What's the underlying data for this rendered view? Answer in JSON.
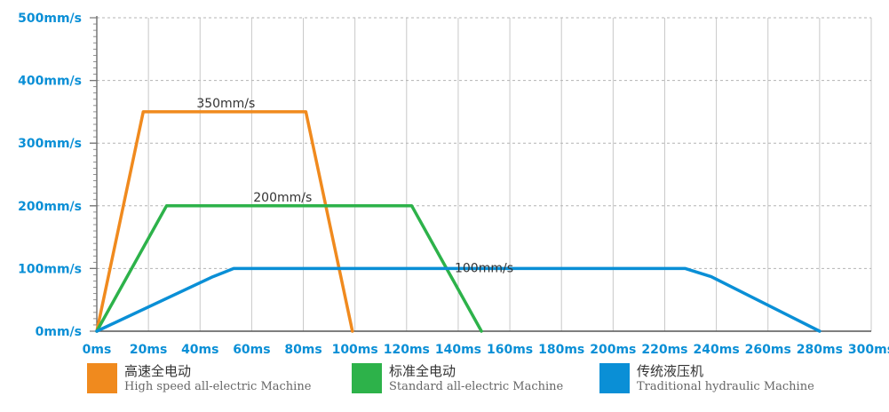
{
  "chart_data": {
    "type": "line",
    "title": "",
    "xlabel": "",
    "ylabel": "",
    "x_ticks": [
      "0ms",
      "20ms",
      "40ms",
      "60ms",
      "80ms",
      "100ms",
      "120ms",
      "140ms",
      "160ms",
      "180ms",
      "200ms",
      "220ms",
      "240ms",
      "260ms",
      "280ms",
      "300ms"
    ],
    "y_ticks": [
      "0mm/s",
      "100mm/s",
      "200mm/s",
      "300mm/s",
      "400mm/s",
      "500mm/s"
    ],
    "xlim": [
      0,
      300
    ],
    "ylim": [
      0,
      500
    ],
    "grid": "vertical",
    "legend_position": "bottom",
    "series": [
      {
        "name": "高速全电动",
        "subtitle": "High speed all-electric Machine",
        "color": "#f08a1e",
        "points": [
          [
            0,
            0
          ],
          [
            18,
            350
          ],
          [
            81,
            350
          ],
          [
            99,
            0
          ]
        ],
        "plateau_label": "350mm/s",
        "plateau_label_x": 50
      },
      {
        "name": "标准全电动",
        "subtitle": "Standard all-electric Machine",
        "color": "#2db24a",
        "points": [
          [
            0,
            0
          ],
          [
            27,
            200
          ],
          [
            122,
            200
          ],
          [
            149,
            0
          ]
        ],
        "plateau_label": "200mm/s",
        "plateau_label_x": 72
      },
      {
        "name": "传统液压机",
        "subtitle": "Traditional hydraulic Machine",
        "color": "#0a8fd6",
        "points": [
          [
            0,
            0
          ],
          [
            45,
            87
          ],
          [
            53,
            100
          ],
          [
            228,
            100
          ],
          [
            238,
            87
          ],
          [
            280,
            0
          ]
        ],
        "plateau_label": "100mm/s",
        "plateau_label_x": 150
      }
    ]
  }
}
